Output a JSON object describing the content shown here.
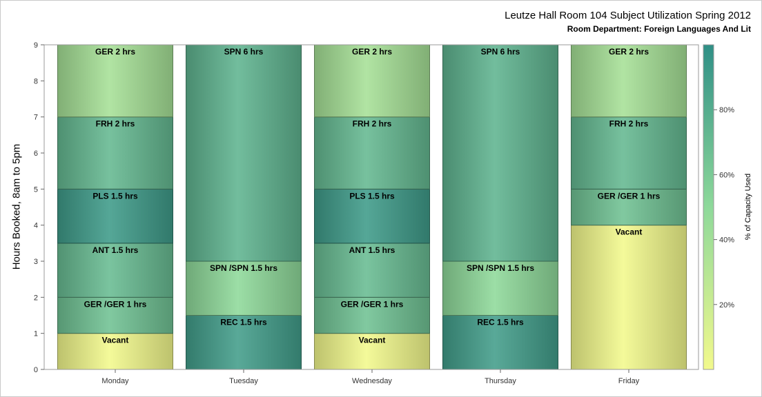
{
  "chart_data": {
    "type": "bar",
    "stacked": true,
    "title": "Leutze Hall Room 104 Subject Utilization Spring 2012",
    "subtitle": "Room Department:  Foreign Languages And Lit",
    "ylabel": "Hours Booked, 8am to 5pm",
    "xlabel": "",
    "ylim": [
      0,
      9
    ],
    "yticks": [
      "0",
      "1",
      "2",
      "3",
      "4",
      "5",
      "6",
      "7",
      "8",
      "9"
    ],
    "grid": false,
    "categories": [
      "Monday",
      "Tuesday",
      "Wednesday",
      "Thursday",
      "Friday"
    ],
    "stacks": [
      [
        {
          "label": "Vacant",
          "hours": 1,
          "capacity": 0
        },
        {
          "label": "GER /GER 1 hrs",
          "hours": 1,
          "capacity": 66
        },
        {
          "label": "ANT 1.5 hrs",
          "hours": 1.5,
          "capacity": 70
        },
        {
          "label": "PLS 1.5 hrs",
          "hours": 1.5,
          "capacity": 92
        },
        {
          "label": "FRH 2 hrs",
          "hours": 2,
          "capacity": 72
        },
        {
          "label": "GER 2 hrs",
          "hours": 2,
          "capacity": 38
        }
      ],
      [
        {
          "label": "REC 1.5 hrs",
          "hours": 1.5,
          "capacity": 90
        },
        {
          "label": "SPN /SPN 1.5 hrs",
          "hours": 1.5,
          "capacity": 50
        },
        {
          "label": "SPN 6 hrs",
          "hours": 6,
          "capacity": 75
        }
      ],
      [
        {
          "label": "Vacant",
          "hours": 1,
          "capacity": 0
        },
        {
          "label": "GER /GER 1 hrs",
          "hours": 1,
          "capacity": 66
        },
        {
          "label": "ANT 1.5 hrs",
          "hours": 1.5,
          "capacity": 70
        },
        {
          "label": "PLS 1.5 hrs",
          "hours": 1.5,
          "capacity": 92
        },
        {
          "label": "FRH 2 hrs",
          "hours": 2,
          "capacity": 72
        },
        {
          "label": "GER 2 hrs",
          "hours": 2,
          "capacity": 38
        }
      ],
      [
        {
          "label": "REC 1.5 hrs",
          "hours": 1.5,
          "capacity": 90
        },
        {
          "label": "SPN /SPN 1.5 hrs",
          "hours": 1.5,
          "capacity": 50
        },
        {
          "label": "SPN 6 hrs",
          "hours": 6,
          "capacity": 75
        }
      ],
      [
        {
          "label": "Vacant",
          "hours": 4,
          "capacity": 0
        },
        {
          "label": "GER /GER 1 hrs",
          "hours": 1,
          "capacity": 66
        },
        {
          "label": "FRH 2 hrs",
          "hours": 2,
          "capacity": 72
        },
        {
          "label": "GER 2 hrs",
          "hours": 2,
          "capacity": 38
        }
      ]
    ],
    "colorbar": {
      "title": "% of Capacity Used",
      "range": [
        0,
        100
      ],
      "ticks": [
        20,
        40,
        60,
        80
      ],
      "tick_labels": [
        "20%",
        "40%",
        "60%",
        "80%"
      ],
      "colors": [
        "#f2f98c",
        "#8ed99a",
        "#2f8f86"
      ]
    }
  }
}
